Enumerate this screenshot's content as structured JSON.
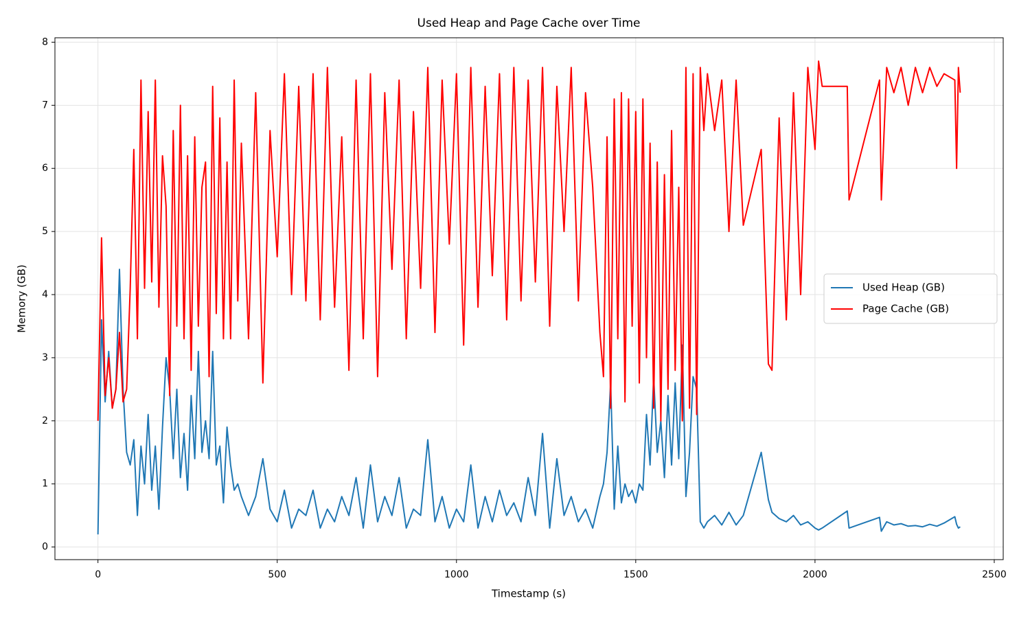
{
  "chart_data": {
    "type": "line",
    "title": "Used Heap and Page Cache over Time",
    "x_label": "Timestamp (s)",
    "y_label": "Memory (GB)",
    "x": [
      0,
      10,
      20,
      30,
      40,
      50,
      60,
      70,
      80,
      90,
      100,
      110,
      120,
      130,
      140,
      150,
      160,
      170,
      180,
      190,
      200,
      210,
      220,
      230,
      240,
      250,
      260,
      270,
      280,
      290,
      300,
      310,
      320,
      330,
      340,
      350,
      360,
      370,
      380,
      390,
      400,
      420,
      440,
      460,
      480,
      500,
      520,
      540,
      560,
      580,
      600,
      620,
      640,
      660,
      680,
      700,
      720,
      740,
      760,
      780,
      800,
      820,
      840,
      860,
      880,
      900,
      920,
      940,
      960,
      980,
      1000,
      1020,
      1040,
      1060,
      1080,
      1100,
      1120,
      1140,
      1160,
      1180,
      1200,
      1220,
      1240,
      1260,
      1280,
      1300,
      1320,
      1340,
      1360,
      1380,
      1400,
      1410,
      1420,
      1430,
      1440,
      1450,
      1460,
      1470,
      1480,
      1490,
      1500,
      1510,
      1520,
      1530,
      1540,
      1550,
      1560,
      1570,
      1580,
      1590,
      1600,
      1610,
      1620,
      1630,
      1640,
      1650,
      1660,
      1670,
      1680,
      1690,
      1700,
      1720,
      1740,
      1760,
      1780,
      1800,
      1850,
      1870,
      1880,
      1900,
      1920,
      1940,
      1960,
      1980,
      2000,
      2010,
      2020,
      2090,
      2095,
      2180,
      2185,
      2200,
      2220,
      2240,
      2260,
      2280,
      2300,
      2320,
      2340,
      2360,
      2390,
      2395,
      2400,
      2405
    ],
    "series": [
      {
        "name": "Used Heap (GB)",
        "color": "#1f77b4",
        "values": [
          0.2,
          3.6,
          2.3,
          3.1,
          2.2,
          2.5,
          4.4,
          2.5,
          1.5,
          1.3,
          1.7,
          0.5,
          1.6,
          1.0,
          2.1,
          0.9,
          1.6,
          0.6,
          1.9,
          3.0,
          2.5,
          1.4,
          2.5,
          1.1,
          1.8,
          0.9,
          2.4,
          1.4,
          3.1,
          1.5,
          2.0,
          1.4,
          3.1,
          1.3,
          1.6,
          0.7,
          1.9,
          1.3,
          0.9,
          1.0,
          0.8,
          0.5,
          0.8,
          1.4,
          0.6,
          0.4,
          0.9,
          0.3,
          0.6,
          0.5,
          0.9,
          0.3,
          0.6,
          0.4,
          0.8,
          0.5,
          1.1,
          0.3,
          1.3,
          0.4,
          0.8,
          0.5,
          1.1,
          0.3,
          0.6,
          0.5,
          1.7,
          0.4,
          0.8,
          0.3,
          0.6,
          0.4,
          1.3,
          0.3,
          0.8,
          0.4,
          0.9,
          0.5,
          0.7,
          0.4,
          1.1,
          0.5,
          1.8,
          0.3,
          1.4,
          0.5,
          0.8,
          0.4,
          0.6,
          0.3,
          0.8,
          1.0,
          1.5,
          2.6,
          0.6,
          1.6,
          0.7,
          1.0,
          0.8,
          0.9,
          0.7,
          1.0,
          0.9,
          2.1,
          1.3,
          2.7,
          1.5,
          2.0,
          1.1,
          2.4,
          1.3,
          2.6,
          1.4,
          3.2,
          0.8,
          1.5,
          2.7,
          2.5,
          0.4,
          0.3,
          0.4,
          0.5,
          0.35,
          0.55,
          0.35,
          0.5,
          1.5,
          0.75,
          0.55,
          0.45,
          0.4,
          0.5,
          0.35,
          0.4,
          0.3,
          0.27,
          0.3,
          0.57,
          0.3,
          0.47,
          0.25,
          0.4,
          0.35,
          0.37,
          0.33,
          0.34,
          0.32,
          0.36,
          0.33,
          0.38,
          0.48,
          0.36,
          0.3,
          0.32
        ]
      },
      {
        "name": "Page Cache (GB)",
        "color": "#ff0000",
        "values": [
          2.0,
          4.9,
          2.4,
          3.0,
          2.2,
          2.5,
          3.4,
          2.3,
          2.5,
          4.1,
          6.3,
          3.3,
          7.4,
          4.1,
          6.9,
          4.2,
          7.4,
          3.8,
          6.2,
          5.4,
          2.4,
          6.6,
          3.5,
          7.0,
          3.3,
          6.2,
          2.8,
          6.5,
          3.5,
          5.7,
          6.1,
          2.7,
          7.3,
          3.7,
          6.8,
          3.3,
          6.1,
          3.3,
          7.4,
          3.9,
          6.4,
          3.3,
          7.2,
          2.6,
          6.6,
          4.6,
          7.5,
          4.0,
          7.3,
          3.9,
          7.5,
          3.6,
          7.6,
          3.8,
          6.5,
          2.8,
          7.4,
          3.3,
          7.5,
          2.7,
          7.2,
          4.4,
          7.4,
          3.3,
          6.9,
          4.1,
          7.6,
          3.4,
          7.4,
          4.8,
          7.5,
          3.2,
          7.6,
          3.8,
          7.3,
          4.3,
          7.5,
          3.6,
          7.6,
          3.9,
          7.4,
          4.2,
          7.6,
          3.5,
          7.3,
          5.0,
          7.6,
          3.9,
          7.2,
          5.7,
          3.4,
          2.7,
          6.5,
          2.2,
          7.1,
          3.3,
          7.2,
          2.3,
          7.1,
          3.5,
          6.9,
          2.6,
          7.1,
          3.0,
          6.4,
          2.2,
          6.1,
          2.0,
          5.9,
          2.5,
          6.6,
          2.8,
          5.7,
          2.0,
          7.6,
          2.2,
          7.5,
          2.1,
          7.6,
          6.6,
          7.5,
          6.6,
          7.4,
          5.0,
          7.4,
          5.1,
          6.3,
          2.9,
          2.8,
          6.8,
          3.6,
          7.2,
          4.0,
          7.6,
          6.3,
          7.7,
          7.3,
          7.3,
          5.5,
          7.4,
          5.5,
          7.6,
          7.2,
          7.6,
          7.0,
          7.6,
          7.2,
          7.6,
          7.3,
          7.5,
          7.4,
          6.0,
          7.6,
          7.2
        ]
      }
    ],
    "xlim": [
      -120,
      2525
    ],
    "ylim": [
      -0.2,
      8.07
    ],
    "xticks": [
      0,
      500,
      1000,
      1500,
      2000,
      2500
    ],
    "yticks": [
      0,
      1,
      2,
      3,
      4,
      5,
      6,
      7,
      8
    ],
    "grid": true,
    "legend": "center right"
  }
}
